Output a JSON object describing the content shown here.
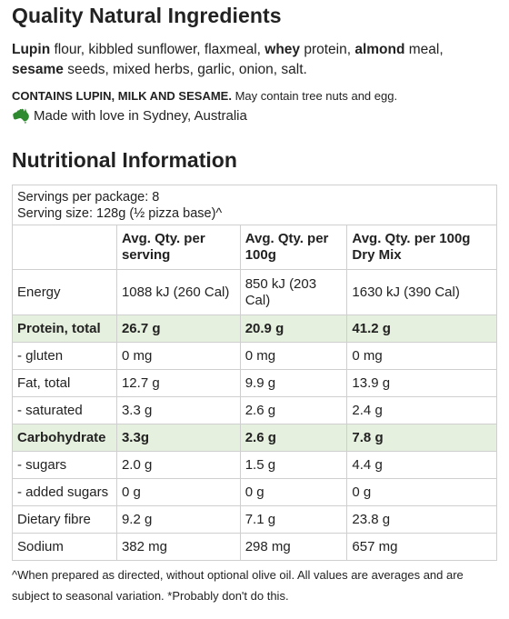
{
  "ingredients": {
    "heading": "Quality Natural Ingredients",
    "items": [
      {
        "text": "Lupin",
        "bold": true
      },
      {
        "text": " flour, kibbled sunflower, flaxmeal, ",
        "bold": false
      },
      {
        "text": "whey",
        "bold": true
      },
      {
        "text": " protein, ",
        "bold": false
      },
      {
        "text": "almond",
        "bold": true
      },
      {
        "text": " meal, ",
        "bold": false
      },
      {
        "text": "sesame",
        "bold": true
      },
      {
        "text": " seeds, mixed herbs, garlic, onion, salt.",
        "bold": false
      }
    ],
    "allergen_bold": "CONTAINS LUPIN, MILK AND SESAME.",
    "allergen_note": " May contain tree nuts and egg.",
    "origin_icon": "australia-map-icon",
    "origin_icon_color": "#2e8a2e",
    "origin": "Made with love in Sydney, Australia"
  },
  "nutrition": {
    "heading": "Nutritional Information",
    "servings_per_package": "Servings per package: 8",
    "serving_size": "Serving size: 128g (½ pizza base)^",
    "columns": [
      "",
      "Avg. Qty. per serving",
      "Avg. Qty. per 100g",
      "Avg. Qty. per 100g Dry Mix"
    ],
    "rows": [
      {
        "label": "Energy",
        "values": [
          "1088 kJ (260 Cal)",
          "850 kJ (203 Cal)",
          "1630 kJ (390 Cal)"
        ],
        "highlight": false,
        "tall": true
      },
      {
        "label": "Protein, total",
        "values": [
          "26.7 g",
          "20.9 g",
          "41.2 g"
        ],
        "highlight": true,
        "tall": false
      },
      {
        "label": "- gluten",
        "values": [
          "0 mg",
          "0 mg",
          "0 mg"
        ],
        "highlight": false,
        "tall": false
      },
      {
        "label": "Fat, total",
        "values": [
          "12.7 g",
          "9.9 g",
          "13.9 g"
        ],
        "highlight": false,
        "tall": false
      },
      {
        "label": "- saturated",
        "values": [
          "3.3 g",
          "2.6 g",
          "2.4 g"
        ],
        "highlight": false,
        "tall": false
      },
      {
        "label": "Carbohydrate",
        "values": [
          "3.3g",
          "2.6 g",
          "7.8 g"
        ],
        "highlight": true,
        "tall": false
      },
      {
        "label": "- sugars",
        "values": [
          "2.0 g",
          "1.5 g",
          "4.4 g"
        ],
        "highlight": false,
        "tall": false
      },
      {
        "label": "- added sugars",
        "values": [
          "0 g",
          "0 g",
          "0 g"
        ],
        "highlight": false,
        "tall": false
      },
      {
        "label": "Dietary fibre",
        "values": [
          "9.2 g",
          "7.1 g",
          "23.8 g"
        ],
        "highlight": false,
        "tall": false
      },
      {
        "label": "Sodium",
        "values": [
          "382 mg",
          "298 mg",
          "657 mg"
        ],
        "highlight": false,
        "tall": false
      }
    ],
    "highlight_color": "#e6f0df",
    "footnote": "^When prepared as directed, without optional olive oil. All values are averages and are subject to seasonal variation. *Probably don't do this."
  }
}
